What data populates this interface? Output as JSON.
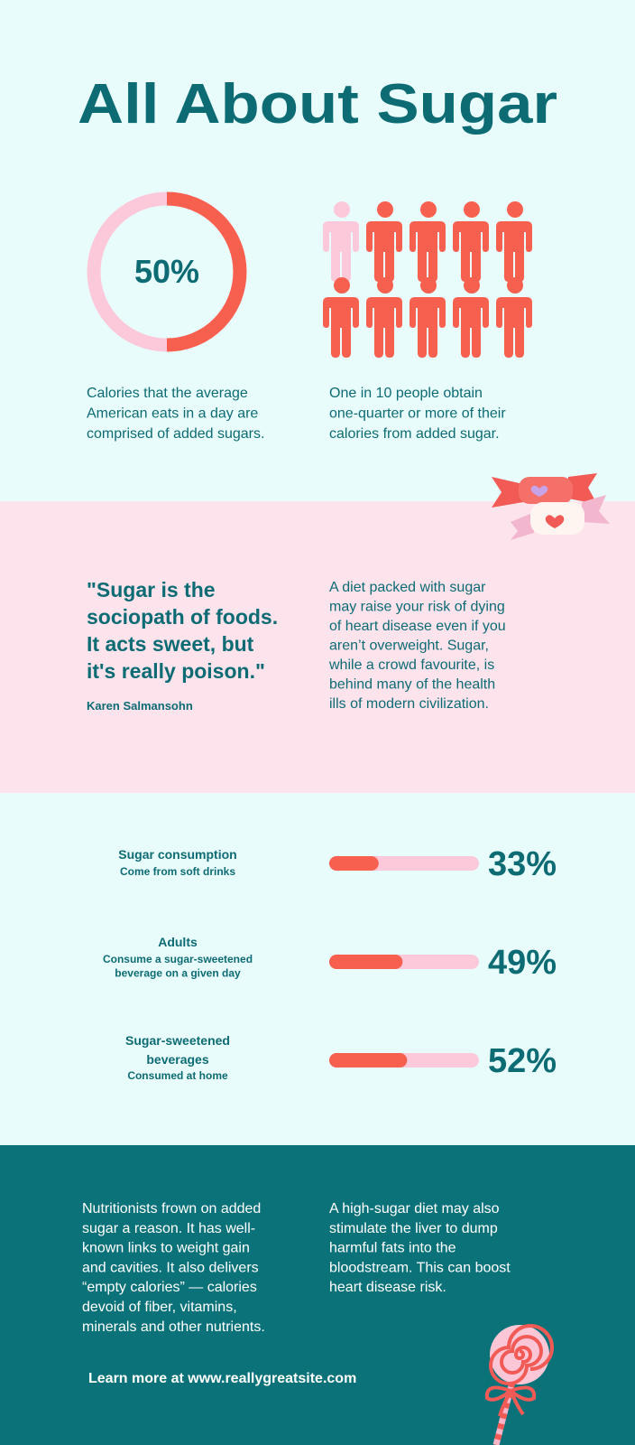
{
  "header": {
    "title": "All About Sugar"
  },
  "stats": {
    "donut": {
      "value": 50,
      "label": "50%",
      "caption": [
        "Calories that the average",
        "American eats in a day are",
        "comprised of added sugars."
      ]
    },
    "people": {
      "total": 10,
      "highlighted": 1,
      "caption": [
        "One in 10 people obtain",
        "one-quarter or more of their",
        "calories from added sugar."
      ]
    }
  },
  "quote": {
    "text": [
      "\"Sugar is the",
      "sociopath of foods.",
      "It acts sweet, but",
      "it's really poison.\""
    ],
    "author": "Karen Salmansohn",
    "body": [
      "A diet packed with sugar",
      "may raise your risk of dying",
      "of heart disease even if you",
      "aren’t overweight. Sugar,",
      "while a crowd favourite, is",
      "behind many of the health",
      "ills of modern civilization."
    ]
  },
  "bars": [
    {
      "title": [
        "Sugar consumption"
      ],
      "subtitle": [
        "Come from soft drinks"
      ],
      "value": 33,
      "label": "33%"
    },
    {
      "title": [
        "Adults"
      ],
      "subtitle": [
        "Consume a sugar-sweetened",
        "beverage on a given day"
      ],
      "value": 49,
      "label": "49%"
    },
    {
      "title": [
        "Sugar-sweetened",
        "beverages"
      ],
      "subtitle": [
        "Consumed at home"
      ],
      "value": 52,
      "label": "52%"
    }
  ],
  "footer": {
    "left": [
      "Nutritionists frown on added",
      "sugar a reason. It has well-",
      "known links to weight gain",
      "and cavities. It also delivers",
      "“empty calories” — calories",
      "devoid of fiber, vitamins,",
      "minerals and other nutrients."
    ],
    "right": [
      "A high-sugar diet may also",
      "stimulate the liver to dump",
      "harmful fats into the",
      "bloodstream. This can boost",
      "heart disease risk."
    ],
    "link": "Learn more at www.reallygreatsite.com"
  }
}
